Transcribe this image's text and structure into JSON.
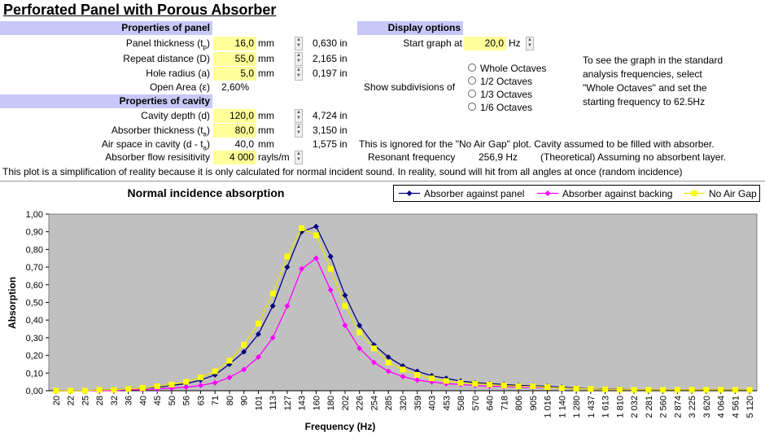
{
  "title": "Perforated Panel with Porous Absorber",
  "panel": {
    "header": "Properties of panel",
    "thickness_label_a": "Panel thickness (t",
    "thickness_label_sub": "p",
    "thickness_label_b": ")",
    "thickness_value": "16,0",
    "thickness_unit": "mm",
    "thickness_in": "0,630",
    "thickness_in_unit": "in",
    "repeat_label": "Repeat distance (D)",
    "repeat_value": "55,0",
    "repeat_unit": "mm",
    "repeat_in": "2,165",
    "repeat_in_unit": "in",
    "hole_label": "Hole radius (a)",
    "hole_value": "5,0",
    "hole_unit": "mm",
    "hole_in": "0,197",
    "hole_in_unit": "in",
    "open_label": "Open Area (ε)",
    "open_value": "2,60%"
  },
  "cavity": {
    "header": "Properties of cavity",
    "depth_label": "Cavity depth (d)",
    "depth_value": "120,0",
    "depth_unit": "mm",
    "depth_in": "4,724",
    "depth_in_unit": "in",
    "abs_label_a": "Absorber thickness (t",
    "abs_label_sub": "a",
    "abs_label_b": ")",
    "abs_value": "80,0",
    "abs_unit": "mm",
    "abs_in": "3,150",
    "abs_in_unit": "in",
    "air_label_a": "Air space in cavity (d - t",
    "air_label_sub": "a",
    "air_label_b": ")",
    "air_value": "40,0",
    "air_unit": "mm",
    "air_in": "1,575",
    "air_in_unit": "in",
    "flow_label": "Absorber flow resisitivity",
    "flow_value": "4 000",
    "flow_unit": "rayls/m"
  },
  "display": {
    "header": "Display options",
    "start_label": "Start graph at",
    "start_value": "20,0",
    "start_unit": "Hz",
    "subdiv_label": "Show subdivisions of",
    "options": [
      "Whole Octaves",
      "1/2 Octaves",
      "1/3 Octaves",
      "1/6 Octaves"
    ],
    "note": [
      "To see the graph in the standard",
      "analysis frequencies, select",
      "\"Whole Octaves\" and set the",
      "starting frequency to 62.5Hz"
    ]
  },
  "notes": {
    "no_air_gap": "This is ignored for the \"No Air Gap\" plot.  Cavity assumed to be filled with absorber.",
    "resonant_label": "Resonant frequency",
    "resonant_value": "256,9",
    "resonant_unit": "Hz",
    "theoretical": "(Theoretical) Assuming no absorbent layer.",
    "simplification": "This plot is a simplification of reality because it is only calculated for normal incident sound.  In reality, sound will hit from all angles at once (random incidence)"
  },
  "colors": {
    "section": "#c8c8f8",
    "input": "#ffff99",
    "plot_bg": "#c0c0c0",
    "panel": "#000080",
    "backing": "#ff00ff",
    "noairgap": "#ffff00"
  },
  "chart_data": {
    "type": "line",
    "title": "Normal incidence absorption",
    "xlabel": "Frequency (Hz)",
    "ylabel": "Absorption",
    "ylim": [
      0,
      1
    ],
    "yticks": [
      "0,00",
      "0,10",
      "0,20",
      "0,30",
      "0,40",
      "0,50",
      "0,60",
      "0,70",
      "0,80",
      "0,90",
      "1,00"
    ],
    "legend_position": "top",
    "categories": [
      "20",
      "22",
      "25",
      "28",
      "32",
      "36",
      "40",
      "45",
      "50",
      "56",
      "63",
      "71",
      "80",
      "90",
      "101",
      "113",
      "127",
      "143",
      "160",
      "180",
      "202",
      "226",
      "254",
      "285",
      "320",
      "359",
      "403",
      "453",
      "508",
      "570",
      "640",
      "718",
      "806",
      "905",
      "1 016",
      "1 140",
      "1 280",
      "1 437",
      "1 613",
      "1 810",
      "2 032",
      "2 281",
      "2 560",
      "2 874",
      "3 225",
      "3 620",
      "4 064",
      "4 561",
      "5 120"
    ],
    "series": [
      {
        "name": "Absorber against panel",
        "values": [
          0.0,
          0.0,
          0.0,
          0.005,
          0.005,
          0.01,
          0.015,
          0.02,
          0.03,
          0.04,
          0.06,
          0.09,
          0.15,
          0.22,
          0.32,
          0.48,
          0.7,
          0.9,
          0.93,
          0.76,
          0.54,
          0.37,
          0.26,
          0.19,
          0.14,
          0.11,
          0.085,
          0.07,
          0.055,
          0.045,
          0.04,
          0.035,
          0.03,
          0.028,
          0.025,
          0.02,
          0.015,
          0.01,
          0.01,
          0.008,
          0.005,
          0.005,
          0.005,
          0.005,
          0.005,
          0.005,
          0.005,
          0.005,
          0.005
        ]
      },
      {
        "name": "Absorber against backing",
        "values": [
          0.0,
          0.0,
          0.0,
          0.0,
          0.0,
          0.005,
          0.005,
          0.01,
          0.015,
          0.02,
          0.03,
          0.045,
          0.075,
          0.12,
          0.19,
          0.3,
          0.48,
          0.69,
          0.75,
          0.57,
          0.37,
          0.24,
          0.16,
          0.11,
          0.08,
          0.06,
          0.05,
          0.04,
          0.035,
          0.03,
          0.025,
          0.025,
          0.02,
          0.02,
          0.018,
          0.015,
          0.012,
          0.01,
          0.008,
          0.006,
          0.005,
          0.005,
          0.005,
          0.005,
          0.005,
          0.005,
          0.005,
          0.005,
          0.005
        ]
      },
      {
        "name": "No Air Gap",
        "values": [
          0.0,
          0.0,
          0.0,
          0.005,
          0.005,
          0.01,
          0.015,
          0.025,
          0.035,
          0.05,
          0.075,
          0.11,
          0.17,
          0.26,
          0.38,
          0.55,
          0.76,
          0.92,
          0.88,
          0.69,
          0.48,
          0.33,
          0.24,
          0.16,
          0.12,
          0.09,
          0.07,
          0.055,
          0.045,
          0.04,
          0.035,
          0.03,
          0.025,
          0.025,
          0.02,
          0.015,
          0.012,
          0.01,
          0.008,
          0.006,
          0.005,
          0.005,
          0.005,
          0.005,
          0.005,
          0.005,
          0.005,
          0.005,
          0.005
        ]
      }
    ]
  }
}
